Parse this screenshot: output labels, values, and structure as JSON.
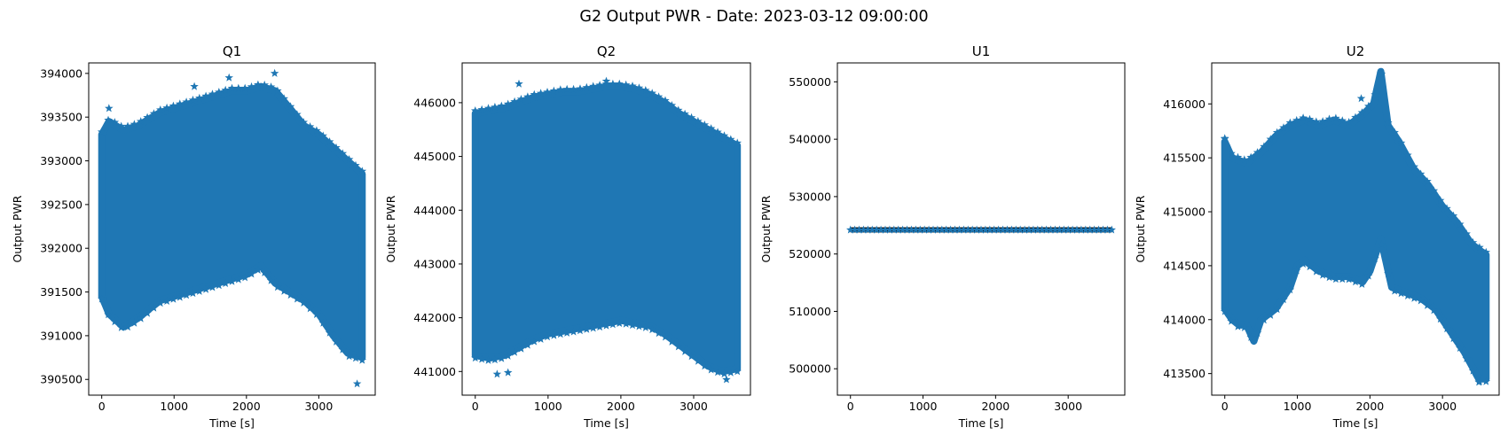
{
  "suptitle": "G2 Output PWR - Date: 2023-03-12 09:00:00",
  "colors": {
    "series": "#1f77b4",
    "axes": "#000000",
    "background": "#ffffff"
  },
  "chart_data": [
    {
      "type": "scatter",
      "title": "Q1",
      "xlabel": "Time [s]",
      "ylabel": "Output PWR",
      "marker": "star",
      "xlim": [
        -180,
        3780
      ],
      "ylim": [
        390320,
        394120
      ],
      "xticks": [
        0,
        1000,
        2000,
        3000
      ],
      "yticks": [
        390500,
        391000,
        391500,
        392000,
        392500,
        393000,
        393500,
        394000
      ],
      "x_range": [
        0,
        3600
      ],
      "upper_envelope": {
        "x": [
          0,
          100,
          300,
          500,
          800,
          1000,
          1200,
          1400,
          1600,
          1800,
          2000,
          2200,
          2400,
          2600,
          2800,
          3000,
          3200,
          3400,
          3600
        ],
        "y": [
          393300,
          393450,
          393350,
          393400,
          393550,
          393600,
          393650,
          393700,
          393750,
          393800,
          393800,
          393850,
          393800,
          393600,
          393400,
          393300,
          393150,
          393000,
          392850
        ]
      },
      "lower_envelope": {
        "x": [
          0,
          100,
          300,
          500,
          800,
          1000,
          1200,
          1400,
          1600,
          1800,
          2000,
          2200,
          2400,
          2600,
          2800,
          3000,
          3200,
          3400,
          3600
        ],
        "y": [
          391450,
          391250,
          391100,
          391200,
          391400,
          391450,
          391500,
          391550,
          391600,
          391650,
          391700,
          391800,
          391600,
          391500,
          391400,
          391250,
          391000,
          390800,
          390750
        ]
      },
      "outliers": [
        [
          3530,
          390450
        ],
        [
          2390,
          394000
        ],
        [
          1760,
          393950
        ],
        [
          100,
          393600
        ],
        [
          1280,
          393850
        ]
      ]
    },
    {
      "type": "scatter",
      "title": "Q2",
      "xlabel": "Time [s]",
      "ylabel": "Output PWR",
      "marker": "star",
      "xlim": [
        -180,
        3780
      ],
      "ylim": [
        440560,
        446740
      ],
      "xticks": [
        0,
        1000,
        2000,
        3000
      ],
      "yticks": [
        441000,
        442000,
        443000,
        444000,
        445000,
        446000
      ],
      "x_range": [
        0,
        3600
      ],
      "upper_envelope": {
        "x": [
          0,
          200,
          400,
          600,
          800,
          1000,
          1200,
          1400,
          1600,
          1800,
          2000,
          2200,
          2400,
          2600,
          2800,
          3000,
          3200,
          3400,
          3600
        ],
        "y": [
          445800,
          445850,
          445900,
          446000,
          446100,
          446150,
          446200,
          446200,
          446250,
          446300,
          446300,
          446250,
          446150,
          446000,
          445800,
          445650,
          445500,
          445350,
          445200
        ]
      },
      "lower_envelope": {
        "x": [
          0,
          200,
          400,
          600,
          800,
          1000,
          1200,
          1400,
          1600,
          1800,
          2000,
          2200,
          2400,
          2600,
          2800,
          3000,
          3200,
          3400,
          3600
        ],
        "y": [
          441300,
          441250,
          441300,
          441450,
          441600,
          441700,
          441750,
          441800,
          441850,
          441900,
          441950,
          441900,
          441850,
          441700,
          441500,
          441300,
          441100,
          441000,
          441050
        ]
      },
      "outliers": [
        [
          300,
          440950
        ],
        [
          450,
          440980
        ],
        [
          1800,
          446400
        ],
        [
          3450,
          440850
        ],
        [
          600,
          446350
        ]
      ]
    },
    {
      "type": "scatter",
      "title": "U1",
      "xlabel": "Time [s]",
      "ylabel": "Output PWR",
      "marker": "star",
      "xlim": [
        -180,
        3780
      ],
      "ylim": [
        495400,
        553300
      ],
      "xticks": [
        0,
        1000,
        2000,
        3000
      ],
      "yticks": [
        500000,
        510000,
        520000,
        530000,
        540000,
        550000
      ],
      "x_range": [
        0,
        3600
      ],
      "constant_value": 524200,
      "band": [
        523750,
        524650
      ]
    },
    {
      "type": "scatter",
      "title": "U2",
      "xlabel": "Time [s]",
      "ylabel": "Output PWR",
      "marker": "star",
      "xlim": [
        -180,
        3780
      ],
      "ylim": [
        413300,
        416380
      ],
      "xticks": [
        0,
        1000,
        2000,
        3000
      ],
      "yticks": [
        413500,
        414000,
        414500,
        415000,
        415500,
        416000
      ],
      "x_range": [
        0,
        3600
      ],
      "upper_envelope": {
        "x": [
          0,
          100,
          300,
          500,
          700,
          900,
          1100,
          1300,
          1500,
          1700,
          1900,
          2050,
          2150,
          2250,
          2400,
          2600,
          2800,
          3000,
          3200,
          3400,
          3600
        ],
        "y": [
          415650,
          415500,
          415450,
          415550,
          415700,
          415800,
          415850,
          415800,
          415850,
          415800,
          415900,
          416000,
          416300,
          415800,
          415650,
          415400,
          415250,
          415050,
          414900,
          414700,
          414600
        ]
      },
      "lower_envelope": {
        "x": [
          0,
          100,
          200,
          300,
          400,
          500,
          700,
          900,
          1000,
          1100,
          1300,
          1500,
          1700,
          1900,
          2000,
          2150,
          2300,
          2500,
          2700,
          2900,
          3100,
          3300,
          3500,
          3600
        ],
        "y": [
          414100,
          414000,
          413950,
          413950,
          413800,
          414000,
          414100,
          414300,
          414500,
          414550,
          414450,
          414400,
          414400,
          414350,
          414450,
          414750,
          414300,
          414250,
          414200,
          414100,
          413900,
          413700,
          413450,
          413450
        ]
      },
      "outliers": [
        [
          2150,
          416280
        ],
        [
          1880,
          416050
        ],
        [
          3500,
          413420
        ],
        [
          0,
          415680
        ]
      ]
    }
  ]
}
